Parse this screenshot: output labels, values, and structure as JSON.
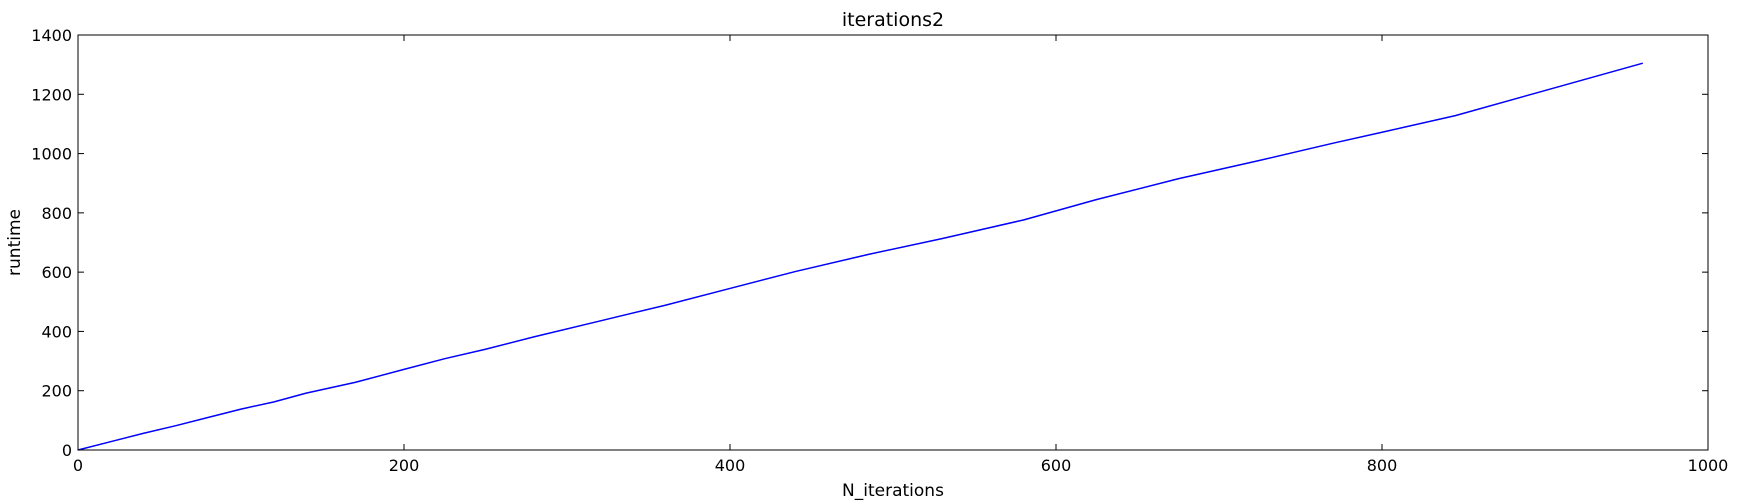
{
  "chart_data": {
    "type": "line",
    "title": "iterations2",
    "xlabel": "N_iterations",
    "ylabel": "runtime",
    "xlim": [
      0,
      1000
    ],
    "ylim": [
      0,
      1400
    ],
    "x_ticks": [
      0,
      200,
      400,
      600,
      800,
      1000
    ],
    "y_ticks": [
      0,
      200,
      400,
      600,
      800,
      1000,
      1200,
      1400
    ],
    "grid": false,
    "legend": "none",
    "series": [
      {
        "color": "#0000ff",
        "x": [
          0,
          20,
          40,
          60,
          80,
          100,
          120,
          140,
          170,
          200,
          225,
          250,
          280,
          320,
          360,
          400,
          440,
          485,
          530,
          580,
          625,
          675,
          725,
          770,
          800,
          845,
          895,
          960
        ],
        "y": [
          0,
          28,
          56,
          82,
          110,
          138,
          162,
          192,
          228,
          272,
          308,
          340,
          382,
          435,
          488,
          545,
          602,
          660,
          713,
          776,
          845,
          915,
          977,
          1035,
          1072,
          1128,
          1205,
          1305
        ]
      }
    ]
  }
}
